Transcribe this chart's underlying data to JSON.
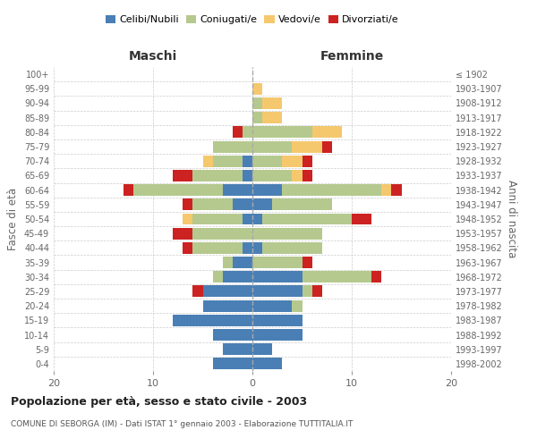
{
  "age_groups": [
    "0-4",
    "5-9",
    "10-14",
    "15-19",
    "20-24",
    "25-29",
    "30-34",
    "35-39",
    "40-44",
    "45-49",
    "50-54",
    "55-59",
    "60-64",
    "65-69",
    "70-74",
    "75-79",
    "80-84",
    "85-89",
    "90-94",
    "95-99",
    "100+"
  ],
  "birth_years": [
    "1998-2002",
    "1993-1997",
    "1988-1992",
    "1983-1987",
    "1978-1982",
    "1973-1977",
    "1968-1972",
    "1963-1967",
    "1958-1962",
    "1953-1957",
    "1948-1952",
    "1943-1947",
    "1938-1942",
    "1933-1937",
    "1928-1932",
    "1923-1927",
    "1918-1922",
    "1913-1917",
    "1908-1912",
    "1903-1907",
    "≤ 1902"
  ],
  "colors": {
    "celibi": "#4a7fb5",
    "coniugati": "#b5c98e",
    "vedovi": "#f5c86e",
    "divorziati": "#cc2222"
  },
  "maschi": {
    "celibi": [
      4,
      3,
      4,
      8,
      5,
      5,
      3,
      2,
      1,
      0,
      1,
      2,
      3,
      1,
      1,
      0,
      0,
      0,
      0,
      0,
      0
    ],
    "coniugati": [
      0,
      0,
      0,
      0,
      0,
      0,
      1,
      1,
      5,
      6,
      5,
      4,
      9,
      5,
      3,
      4,
      1,
      0,
      0,
      0,
      0
    ],
    "vedovi": [
      0,
      0,
      0,
      0,
      0,
      0,
      0,
      0,
      0,
      0,
      1,
      0,
      0,
      0,
      1,
      0,
      0,
      0,
      0,
      0,
      0
    ],
    "divorziati": [
      0,
      0,
      0,
      0,
      0,
      1,
      0,
      0,
      1,
      2,
      0,
      1,
      1,
      2,
      0,
      0,
      1,
      0,
      0,
      0,
      0
    ]
  },
  "femmine": {
    "celibi": [
      3,
      2,
      5,
      5,
      4,
      5,
      5,
      0,
      1,
      0,
      1,
      2,
      3,
      0,
      0,
      0,
      0,
      0,
      0,
      0,
      0
    ],
    "coniugati": [
      0,
      0,
      0,
      0,
      1,
      1,
      7,
      5,
      6,
      7,
      9,
      6,
      10,
      4,
      3,
      4,
      6,
      1,
      1,
      0,
      0
    ],
    "vedovi": [
      0,
      0,
      0,
      0,
      0,
      0,
      0,
      0,
      0,
      0,
      0,
      0,
      1,
      1,
      2,
      3,
      3,
      2,
      2,
      1,
      0
    ],
    "divorziati": [
      0,
      0,
      0,
      0,
      0,
      1,
      1,
      1,
      0,
      0,
      2,
      0,
      1,
      1,
      1,
      1,
      0,
      0,
      0,
      0,
      0
    ]
  },
  "title": "Popolazione per età, sesso e stato civile - 2003",
  "subtitle": "COMUNE DI SEBORGA (IM) - Dati ISTAT 1° gennaio 2003 - Elaborazione TUTTITALIA.IT",
  "ylabel": "Fasce di età",
  "ylabel_right": "Anni di nascita",
  "xlabel_left": "Maschi",
  "xlabel_right": "Femmine",
  "xlim": 20,
  "legend_labels": [
    "Celibi/Nubili",
    "Coniugati/e",
    "Vedovi/e",
    "Divorziati/e"
  ],
  "background_color": "#ffffff"
}
